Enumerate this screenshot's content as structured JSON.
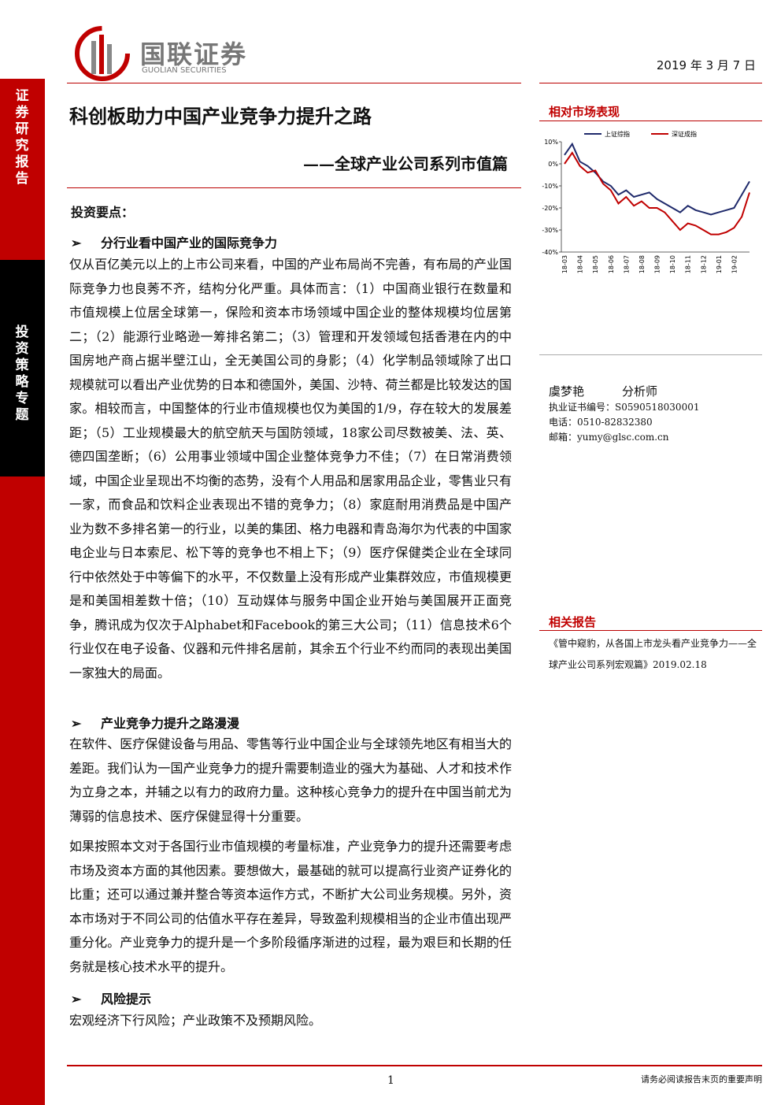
{
  "header": {
    "company": "国联证券",
    "company_en": "GUOLIAN SECURITIES",
    "date": "2019 年 3 月 7 日"
  },
  "sidebar": {
    "category": "证券研究报告",
    "report_type": "投资策略专题"
  },
  "title": "科创板助力中国产业竞争力提升之路",
  "subtitle": "——全球产业公司系列市值篇",
  "key_points_heading": "投资要点：",
  "sections": [
    {
      "heading": "分行业看中国产业的国际竞争力",
      "paragraphs": [
        "仅从百亿美元以上的上市公司来看，中国的产业布局尚不完善，有布局的产业国际竞争力也良莠不齐，结构分化严重。具体而言：（1）中国商业银行在数量和市值规模上位居全球第一，保险和资本市场领域中国企业的整体规模均位居第二；（2）能源行业略逊一筹排名第二；（3）管理和开发领域包括香港在内的中国房地产商占据半壁江山，全无美国公司的身影；（4）化学制品领域除了出口规模就可以看出产业优势的日本和德国外，美国、沙特、荷兰都是比较发达的国家。相较而言，中国整体的行业市值规模也仅为美国的1/9，存在较大的发展差距；（5）工业规模最大的航空航天与国防领域，18家公司尽数被美、法、英、德四国垄断；（6）公用事业领域中国企业整体竞争力不佳；（7）在日常消费领域，中国企业呈现出不均衡的态势，没有个人用品和居家用品企业，零售业只有一家，而食品和饮料企业表现出不错的竞争力；（8）家庭耐用消费品是中国产业为数不多排名第一的行业，以美的集团、格力电器和青岛海尔为代表的中国家电企业与日本索尼、松下等的竞争也不相上下；（9）医疗保健类企业在全球同行中依然处于中等偏下的水平，不仅数量上没有形成产业集群效应，市值规模更是和美国相差数十倍；（10）互动媒体与服务中国企业开始与美国展开正面竞争，腾讯成为仅次于Alphabet和Facebook的第三大公司；（11）信息技术6个行业仅在电子设备、仪器和元件排名居前，其余五个行业不约而同的表现出美国一家独大的局面。"
      ]
    },
    {
      "heading": "产业竞争力提升之路漫漫",
      "paragraphs": [
        "在软件、医疗保健设备与用品、零售等行业中国企业与全球领先地区有相当大的差距。我们认为一国产业竞争力的提升需要制造业的强大为基础、人才和技术作为立身之本，并辅之以有力的政府力量。这种核心竞争力的提升在中国当前尤为薄弱的信息技术、医疗保健显得十分重要。",
        "如果按照本文对于各国行业市值规模的考量标准，产业竞争力的提升还需要考虑市场及资本方面的其他因素。要想做大，最基础的就可以提高行业资产证券化的比重；还可以通过兼并整合等资本运作方式，不断扩大公司业务规模。另外，资本市场对于不同公司的估值水平存在差异，导致盈利规模相当的企业市值出现严重分化。产业竞争力的提升是一个多阶段循序渐进的过程，最为艰巨和长期的任务就是核心技术水平的提升。"
      ]
    },
    {
      "heading": "风险提示",
      "paragraphs": [
        "宏观经济下行风险；产业政策不及预期风险。"
      ]
    }
  ],
  "chart_data": {
    "type": "line",
    "title": "相对市场表现",
    "x": [
      "18-03",
      null,
      "18-04",
      null,
      "18-05",
      null,
      "18-06",
      null,
      "18-07",
      null,
      "18-08",
      null,
      "18-09",
      null,
      "18-10",
      null,
      "18-11",
      null,
      "18-12",
      null,
      "19-01",
      null,
      "19-02",
      null,
      null
    ],
    "series": [
      {
        "name": "上证综指",
        "color": "#1f2a6b",
        "values": [
          4,
          9,
          1,
          -1,
          -4,
          -8,
          -10,
          -14,
          -12,
          -15,
          -14,
          -13,
          -16,
          -18,
          -20,
          -22,
          -19,
          -21,
          -22,
          -23,
          -22,
          -21,
          -20,
          -14,
          -8
        ]
      },
      {
        "name": "深证成指",
        "color": "#c00000",
        "values": [
          0,
          5,
          -1,
          -4,
          -3,
          -9,
          -12,
          -18,
          -15,
          -19,
          -17,
          -20,
          -20,
          -22,
          -26,
          -30,
          -27,
          -28,
          -30,
          -32,
          -32,
          -31,
          -29,
          -24,
          -13
        ]
      }
    ],
    "ylim": [
      -40,
      10
    ],
    "yticks": [
      {
        "value": 10,
        "label": "10%"
      },
      {
        "value": 0,
        "label": "0%"
      },
      {
        "value": -10,
        "label": "-10%"
      },
      {
        "value": -20,
        "label": "-20%"
      },
      {
        "value": -30,
        "label": "-30%"
      },
      {
        "value": -40,
        "label": "-40%"
      }
    ],
    "legend": "top"
  },
  "analyst": {
    "name": "虞梦艳",
    "role": "分析师",
    "certificate": "执业证书编号：S0590518030001",
    "phone": "电话：0510-82832380",
    "email": "邮箱：yumy@glsc.com.cn"
  },
  "related": {
    "heading": "相关报告",
    "items": [
      "《管中窥豹，从各国上市龙头看产业竞争力——全球产业公司系列宏观篇》2019.02.18"
    ]
  },
  "footer": {
    "page": "1",
    "disclaimer": "请务必阅读报告末页的重要声明"
  }
}
